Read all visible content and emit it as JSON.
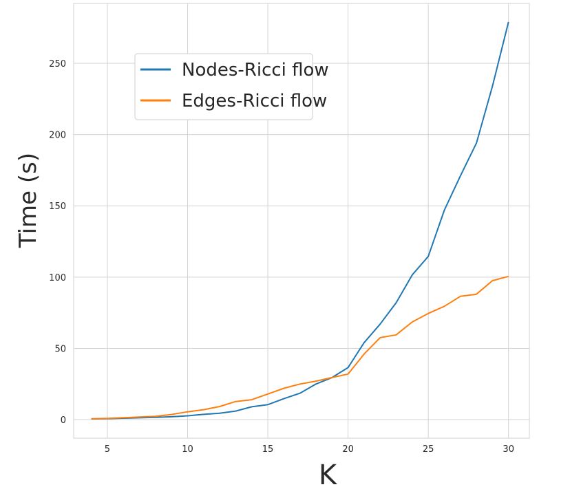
{
  "chart_data": {
    "type": "line",
    "xlabel": "K",
    "ylabel": "Time (s)",
    "xlim": [
      2.9,
      31.3
    ],
    "ylim": [
      -13,
      292
    ],
    "xticks": [
      5,
      10,
      15,
      20,
      25,
      30
    ],
    "yticks": [
      0,
      50,
      100,
      150,
      200,
      250
    ],
    "grid": true,
    "legend_position": "upper-left",
    "x": [
      4,
      5,
      6,
      7,
      8,
      9,
      10,
      11,
      12,
      13,
      14,
      15,
      16,
      17,
      18,
      19,
      20,
      21,
      22,
      23,
      24,
      25,
      26,
      27,
      28,
      29,
      30
    ],
    "series": [
      {
        "name": "Nodes-Ricci flow",
        "color": "#1f77b4",
        "values": [
          0.5,
          0.7,
          1,
          1.3,
          1.6,
          2,
          2.7,
          3.7,
          4.5,
          6,
          9,
          10.5,
          14.7,
          18.5,
          25,
          29.5,
          36.5,
          54,
          67,
          82,
          101.5,
          114.5,
          147,
          171,
          194,
          234,
          279
        ]
      },
      {
        "name": "Edges-Ricci flow",
        "color": "#ff7f0e",
        "values": [
          0.6,
          0.9,
          1.4,
          1.8,
          2.3,
          3.6,
          5.5,
          7,
          9.2,
          12.7,
          14,
          18,
          22,
          25,
          27,
          29.5,
          32,
          46,
          57.5,
          59.5,
          68.5,
          74.5,
          79.5,
          86.5,
          88,
          97.5,
          100.5
        ]
      }
    ]
  }
}
